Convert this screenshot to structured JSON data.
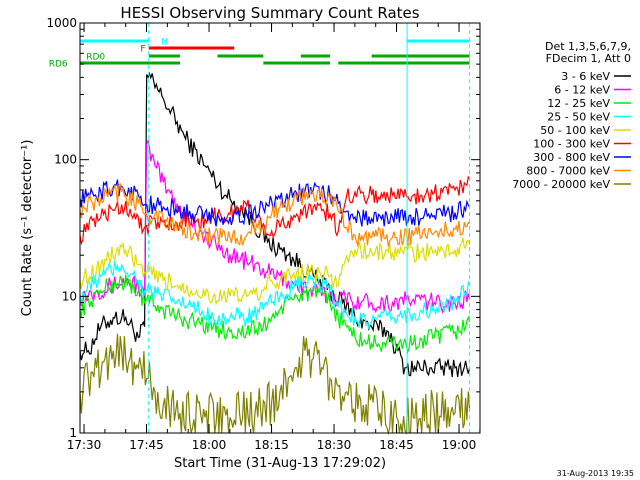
{
  "chart_data": {
    "type": "line",
    "title": "HESSI Observing Summary Count Rates",
    "xlabel": "Start Time (31-Aug-13 17:29:02)",
    "ylabel": "Count Rate (s⁻¹ detector⁻¹)",
    "x_unit": "minutes from 17:29:02",
    "xlim": [
      0,
      96
    ],
    "ylim": [
      1,
      1000
    ],
    "y_scale": "log",
    "grid": false,
    "legend_position": "right",
    "x_ticks": [
      {
        "x": 0.97,
        "label": "17:30"
      },
      {
        "x": 15.97,
        "label": "17:45"
      },
      {
        "x": 30.97,
        "label": "18:00"
      },
      {
        "x": 45.97,
        "label": "18:15"
      },
      {
        "x": 60.97,
        "label": "18:30"
      },
      {
        "x": 75.97,
        "label": "18:45"
      },
      {
        "x": 90.97,
        "label": "19:00"
      }
    ],
    "y_ticks": [
      {
        "y": 1,
        "label": "1"
      },
      {
        "y": 10,
        "label": "10"
      },
      {
        "y": 100,
        "label": "100"
      },
      {
        "y": 1000,
        "label": "1000"
      }
    ],
    "legend_header": [
      "Det 1,3,5,6,7,9,",
      "FDecim 1, Att 0"
    ],
    "series": [
      {
        "name": "3 - 6 keV",
        "color": "#000000",
        "x": [
          0,
          2,
          5,
          8,
          11,
          14,
          15.5,
          16,
          20,
          25,
          30,
          35,
          40,
          45,
          50,
          55,
          60,
          63,
          66,
          70,
          74,
          78,
          84,
          90,
          93.5
        ],
        "y": [
          4,
          4,
          6,
          7,
          7,
          5,
          6,
          420,
          280,
          150,
          90,
          55,
          40,
          25,
          20,
          15,
          11,
          9,
          7,
          6,
          5.5,
          3,
          3,
          3,
          3
        ]
      },
      {
        "name": "6 - 12 keV",
        "color": "#ff00ff",
        "x": [
          0,
          4,
          8,
          11,
          14,
          15.5,
          16,
          18,
          21,
          25,
          30,
          35,
          40,
          45,
          50,
          55,
          60,
          65,
          70,
          75,
          80,
          85,
          90,
          93.5
        ],
        "y": [
          10,
          11,
          12,
          13,
          12,
          10,
          130,
          90,
          60,
          40,
          27,
          21,
          18,
          15,
          13,
          11,
          10,
          9.5,
          9,
          9,
          9.5,
          9,
          9,
          9.5
        ]
      },
      {
        "name": "12 - 25 keV",
        "color": "#00ee00",
        "x": [
          0,
          5,
          10,
          14,
          15.5,
          16,
          20,
          24,
          28,
          32,
          36,
          40,
          44,
          46,
          48,
          52,
          56,
          60,
          62,
          64,
          66,
          70,
          75,
          80,
          85,
          90,
          93.5
        ],
        "y": [
          8,
          11,
          13,
          11,
          9,
          9.5,
          8,
          7,
          6.5,
          6,
          5.5,
          5.5,
          6,
          7,
          8,
          10,
          11,
          9,
          7,
          6,
          5,
          4.5,
          4.5,
          4.5,
          5,
          5.5,
          6.5
        ]
      },
      {
        "name": "25 - 50 keV",
        "color": "#00ffff",
        "x": [
          0,
          5,
          10,
          14,
          15.5,
          16,
          20,
          24,
          28,
          32,
          36,
          40,
          44,
          46,
          48,
          52,
          56,
          60,
          62,
          64,
          66,
          70,
          75,
          80,
          85,
          90,
          93.5
        ],
        "y": [
          10,
          14,
          17,
          13,
          11,
          11,
          10,
          9,
          8,
          7,
          7,
          7,
          8,
          9,
          10,
          12,
          13,
          11,
          8.5,
          7.5,
          7,
          6.5,
          7,
          7.5,
          8,
          9,
          12
        ]
      },
      {
        "name": "50 - 100 keV",
        "color": "#dddd00",
        "x": [
          0,
          5,
          10,
          14,
          15.5,
          16,
          20,
          24,
          28,
          32,
          36,
          40,
          44,
          46,
          48,
          52,
          56,
          60,
          62,
          64,
          66,
          70,
          75,
          80,
          85,
          90,
          93.5
        ],
        "y": [
          13,
          17,
          23,
          17,
          15,
          15,
          13,
          12,
          11,
          10,
          10,
          10,
          11,
          13,
          13,
          15,
          15,
          14,
          12,
          20,
          22,
          21,
          21,
          21,
          21,
          22,
          24
        ]
      },
      {
        "name": "100 - 300 keV",
        "color": "#ff0000",
        "x": [
          0,
          5,
          10,
          14,
          15.5,
          16,
          20,
          24,
          28,
          32,
          36,
          40,
          44,
          46,
          48,
          52,
          56,
          60,
          62,
          64,
          66,
          70,
          75,
          80,
          85,
          90,
          93.5
        ],
        "y": [
          28,
          38,
          47,
          38,
          32,
          33,
          35,
          35,
          36,
          38,
          40,
          46,
          34,
          30,
          32,
          40,
          45,
          40,
          30,
          55,
          58,
          55,
          55,
          55,
          57,
          60,
          72
        ]
      },
      {
        "name": "300 - 800 keV",
        "color": "#0000ff",
        "x": [
          0,
          5,
          10,
          14,
          15.5,
          16,
          20,
          24,
          28,
          32,
          36,
          40,
          44,
          46,
          48,
          52,
          56,
          60,
          62,
          64,
          66,
          70,
          75,
          80,
          85,
          90,
          93.5
        ],
        "y": [
          52,
          58,
          64,
          55,
          47,
          47,
          45,
          42,
          40,
          38,
          38,
          40,
          44,
          50,
          52,
          57,
          60,
          55,
          48,
          42,
          38,
          37,
          38,
          38,
          39,
          41,
          45
        ]
      },
      {
        "name": "800 - 7000 keV",
        "color": "#ff8800",
        "x": [
          0,
          5,
          10,
          14,
          15.5,
          16,
          20,
          24,
          28,
          32,
          36,
          40,
          44,
          46,
          48,
          52,
          56,
          60,
          62,
          64,
          66,
          70,
          75,
          80,
          85,
          90,
          93.5
        ],
        "y": [
          43,
          52,
          58,
          48,
          40,
          40,
          36,
          32,
          29,
          27,
          27,
          28,
          32,
          40,
          45,
          52,
          57,
          52,
          42,
          32,
          28,
          27,
          27,
          28,
          29,
          31,
          34
        ]
      },
      {
        "name": "7000 - 20000 keV",
        "color": "#808000",
        "x": [
          0,
          2,
          4,
          6,
          8,
          10,
          12,
          14,
          16,
          18,
          20,
          24,
          30,
          36,
          42,
          46,
          48,
          50,
          52,
          54,
          56,
          58,
          60,
          62,
          64,
          68,
          72,
          76,
          80,
          85,
          90,
          93.5
        ],
        "y": [
          2,
          2.5,
          3,
          3.5,
          4,
          4,
          3.5,
          3,
          2.5,
          2,
          1.6,
          1.4,
          1.3,
          1.3,
          1.4,
          1.7,
          2,
          2.5,
          3,
          4,
          3.5,
          3,
          2.5,
          2.2,
          2,
          1.6,
          1.4,
          1.3,
          1.3,
          1.4,
          1.4,
          1.5
        ]
      }
    ],
    "state_bars": [
      {
        "label": "N",
        "color": "#00ffff",
        "segments": [
          [
            0,
            16.5
          ],
          [
            78.5,
            93.5
          ]
        ],
        "label_x": 19.5
      },
      {
        "label": "F",
        "color": "#ff0000",
        "segments": [
          [
            16.5,
            37
          ]
        ],
        "label_x": 14.5
      },
      {
        "label": "RD0",
        "color": "#00aa00",
        "segments": [
          [
            16.5,
            24
          ],
          [
            33,
            44
          ],
          [
            53,
            60
          ],
          [
            70,
            93.5
          ]
        ],
        "label_x": 1.5
      },
      {
        "label": "RD6",
        "color": "#00aa00",
        "segments": [
          [
            0,
            24
          ],
          [
            44,
            60
          ],
          [
            62,
            93.5
          ]
        ],
        "label_x": -7.5
      }
    ],
    "vertical_markers": [
      {
        "x": 16.5,
        "style": "dashed",
        "color": "#00ffff"
      },
      {
        "x": 78.5,
        "style": "solid",
        "color": "#00ffff"
      },
      {
        "x": 93.5,
        "style": "dashed",
        "color": "#00ffff"
      }
    ],
    "timestamp": "31-Aug-2013 19:35"
  }
}
